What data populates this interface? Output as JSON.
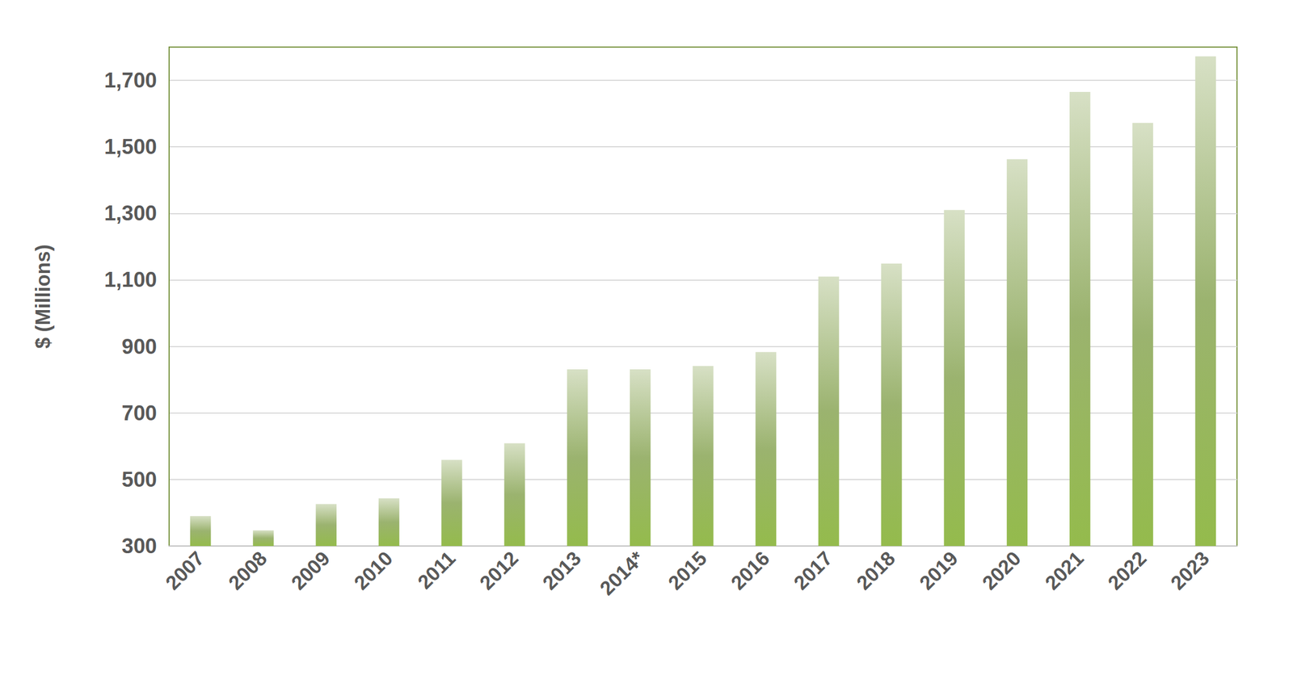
{
  "chart_data": {
    "type": "bar",
    "y_label": "$ (Millions)",
    "categories": [
      "2007",
      "2008",
      "2009",
      "2010",
      "2011",
      "2012",
      "2013",
      "2014*",
      "2015",
      "2016",
      "2017",
      "2018",
      "2019",
      "2020",
      "2021",
      "2022",
      "2023"
    ],
    "values": [
      390,
      347,
      426,
      443,
      559,
      609,
      831,
      831,
      841,
      883,
      1110,
      1149,
      1310,
      1463,
      1665,
      1572,
      1772
    ],
    "color": "#7a9a3f",
    "ylim": [
      300,
      1800
    ],
    "yticks": [
      300,
      500,
      700,
      900,
      {
        "value": 1100,
        "label": "1,100"
      },
      {
        "value": 1300,
        "label": "1,300"
      },
      {
        "value": 1500,
        "label": "1,500"
      },
      {
        "value": 1700,
        "label": "1,700"
      }
    ],
    "grid": true
  }
}
